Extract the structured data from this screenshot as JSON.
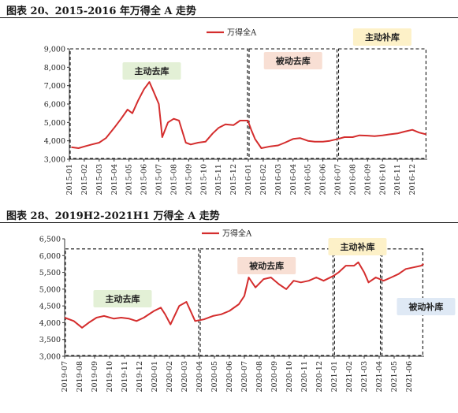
{
  "figures": [
    {
      "title": "图表 20、2015-2016 年万得全 A 走势"
    },
    {
      "title": "图表 28、2019H2-2021H1 万得全 A 走势"
    }
  ],
  "chart_data": [
    {
      "type": "line",
      "title": "",
      "xlabel": "",
      "ylabel": "",
      "x_tick_labels": [
        "2015-01",
        "2015-02",
        "2015-03",
        "2015-04",
        "2015-05",
        "2015-06",
        "2015-07",
        "2015-08",
        "2015-09",
        "2015-10",
        "2015-11",
        "2015-12",
        "2016-01",
        "2016-02",
        "2016-03",
        "2016-04",
        "2016-05",
        "2016-06",
        "2016-07",
        "2016-08",
        "2016-09",
        "2016-10",
        "2016-11",
        "2016-12"
      ],
      "x_range": [
        "2015-01",
        "2016-12"
      ],
      "ylim": [
        3000,
        9000
      ],
      "y_ticks": [
        3000,
        4000,
        5000,
        6000,
        7000,
        8000,
        9000
      ],
      "y_tick_labels": [
        "3,000",
        "4,000",
        "5,000",
        "6,000",
        "7,000",
        "8,000",
        "9,000"
      ],
      "grid": false,
      "legend": "top-center",
      "series": [
        {
          "name": "万得全A",
          "color": "#d42d2d",
          "points": [
            [
              "2015-01-05",
              3650
            ],
            [
              "2015-01-20",
              3600
            ],
            [
              "2015-02-02",
              3700
            ],
            [
              "2015-02-15",
              3800
            ],
            [
              "2015-03-01",
              3900
            ],
            [
              "2015-03-15",
              4150
            ],
            [
              "2015-04-01",
              4700
            ],
            [
              "2015-04-15",
              5200
            ],
            [
              "2015-04-28",
              5700
            ],
            [
              "2015-05-08",
              5500
            ],
            [
              "2015-05-20",
              6200
            ],
            [
              "2015-06-01",
              6800
            ],
            [
              "2015-06-12",
              7200
            ],
            [
              "2015-06-20",
              6700
            ],
            [
              "2015-07-01",
              6000
            ],
            [
              "2015-07-08",
              4200
            ],
            [
              "2015-07-20",
              5000
            ],
            [
              "2015-08-01",
              5200
            ],
            [
              "2015-08-12",
              5100
            ],
            [
              "2015-08-26",
              3900
            ],
            [
              "2015-09-05",
              3800
            ],
            [
              "2015-09-20",
              3900
            ],
            [
              "2015-10-05",
              3950
            ],
            [
              "2015-10-20",
              4400
            ],
            [
              "2015-11-01",
              4700
            ],
            [
              "2015-11-15",
              4900
            ],
            [
              "2015-12-01",
              4850
            ],
            [
              "2015-12-15",
              5100
            ],
            [
              "2015-12-31",
              5100
            ],
            [
              "2016-01-07",
              4600
            ],
            [
              "2016-01-15",
              4100
            ],
            [
              "2016-01-28",
              3600
            ],
            [
              "2016-02-15",
              3700
            ],
            [
              "2016-03-01",
              3750
            ],
            [
              "2016-03-15",
              3900
            ],
            [
              "2016-04-01",
              4100
            ],
            [
              "2016-04-15",
              4150
            ],
            [
              "2016-05-01",
              4000
            ],
            [
              "2016-05-15",
              3950
            ],
            [
              "2016-06-01",
              3950
            ],
            [
              "2016-06-15",
              4000
            ],
            [
              "2016-07-01",
              4100
            ],
            [
              "2016-07-15",
              4200
            ],
            [
              "2016-08-01",
              4200
            ],
            [
              "2016-08-15",
              4300
            ],
            [
              "2016-09-01",
              4280
            ],
            [
              "2016-09-15",
              4250
            ],
            [
              "2016-10-01",
              4300
            ],
            [
              "2016-10-15",
              4350
            ],
            [
              "2016-11-01",
              4400
            ],
            [
              "2016-11-15",
              4500
            ],
            [
              "2016-12-01",
              4600
            ],
            [
              "2016-12-15",
              4450
            ],
            [
              "2016-12-30",
              4350
            ]
          ]
        }
      ],
      "annotations": [
        {
          "label": "主动去库",
          "color": "#e3f0d6",
          "from": "2015-01-01",
          "to": "2016-01-01",
          "top": 9000
        },
        {
          "label": "被动去库",
          "color": "#f8dfd4",
          "from": "2016-01-01",
          "to": "2016-07-01",
          "top": 9000
        },
        {
          "label": "主动补库",
          "color": "#fdf1c8",
          "from": "2016-07-01",
          "to": "2016-12-31",
          "top": 9000
        }
      ]
    },
    {
      "type": "line",
      "title": "",
      "xlabel": "",
      "ylabel": "",
      "x_tick_labels": [
        "2019-07",
        "2019-08",
        "2019-09",
        "2019-10",
        "2019-11",
        "2019-12",
        "2020-01",
        "2020-02",
        "2020-03",
        "2020-04",
        "2020-05",
        "2020-06",
        "2020-07",
        "2020-08",
        "2020-09",
        "2020-10",
        "2020-11",
        "2020-12",
        "2021-01",
        "2021-02",
        "2021-03",
        "2021-04",
        "2021-05",
        "2021-06"
      ],
      "x_range": [
        "2019-07",
        "2021-06"
      ],
      "ylim": [
        3000,
        6500
      ],
      "y_ticks": [
        3000,
        3500,
        4000,
        4500,
        5000,
        5500,
        6000,
        6500
      ],
      "y_tick_labels": [
        "3,000",
        "3,500",
        "4,000",
        "4,500",
        "5,000",
        "5,500",
        "6,000",
        "6,500"
      ],
      "grid": false,
      "legend": "top-center",
      "series": [
        {
          "name": "万得全A",
          "color": "#d42d2d",
          "points": [
            [
              "2019-07-01",
              4150
            ],
            [
              "2019-07-20",
              4050
            ],
            [
              "2019-08-06",
              3850
            ],
            [
              "2019-08-20",
              4000
            ],
            [
              "2019-09-05",
              4150
            ],
            [
              "2019-09-20",
              4200
            ],
            [
              "2019-10-10",
              4120
            ],
            [
              "2019-10-25",
              4150
            ],
            [
              "2019-11-10",
              4120
            ],
            [
              "2019-11-25",
              4050
            ],
            [
              "2019-12-10",
              4150
            ],
            [
              "2019-12-31",
              4350
            ],
            [
              "2020-01-14",
              4450
            ],
            [
              "2020-01-23",
              4250
            ],
            [
              "2020-02-03",
              3950
            ],
            [
              "2020-02-20",
              4500
            ],
            [
              "2020-03-05",
              4620
            ],
            [
              "2020-03-23",
              4050
            ],
            [
              "2020-04-10",
              4100
            ],
            [
              "2020-04-28",
              4200
            ],
            [
              "2020-05-15",
              4250
            ],
            [
              "2020-06-01",
              4350
            ],
            [
              "2020-06-20",
              4550
            ],
            [
              "2020-07-01",
              4800
            ],
            [
              "2020-07-10",
              5350
            ],
            [
              "2020-07-24",
              5050
            ],
            [
              "2020-08-10",
              5300
            ],
            [
              "2020-08-25",
              5350
            ],
            [
              "2020-09-10",
              5150
            ],
            [
              "2020-09-25",
              5000
            ],
            [
              "2020-10-10",
              5250
            ],
            [
              "2020-10-25",
              5200
            ],
            [
              "2020-11-10",
              5250
            ],
            [
              "2020-11-25",
              5350
            ],
            [
              "2020-12-10",
              5250
            ],
            [
              "2020-12-31",
              5400
            ],
            [
              "2021-01-10",
              5500
            ],
            [
              "2021-01-25",
              5700
            ],
            [
              "2021-02-10",
              5700
            ],
            [
              "2021-02-18",
              5800
            ],
            [
              "2021-03-01",
              5500
            ],
            [
              "2021-03-10",
              5200
            ],
            [
              "2021-03-25",
              5350
            ],
            [
              "2021-04-10",
              5250
            ],
            [
              "2021-04-25",
              5350
            ],
            [
              "2021-05-10",
              5450
            ],
            [
              "2021-05-25",
              5600
            ],
            [
              "2021-06-10",
              5650
            ],
            [
              "2021-06-25",
              5700
            ],
            [
              "2021-06-30",
              5750
            ]
          ]
        }
      ],
      "annotations": [
        {
          "label": "主动去库",
          "color": "#e3f0d6",
          "from": "2019-07-01",
          "to": "2020-04-01",
          "top": 6200
        },
        {
          "label": "被动去库",
          "color": "#f8dfd4",
          "from": "2020-04-01",
          "to": "2020-12-31",
          "top": 6200
        },
        {
          "label": "主动补库",
          "color": "#fdf1c8",
          "from": "2020-12-31",
          "to": "2021-04-05",
          "top": 6200
        },
        {
          "label": "被动补库",
          "color": "#dfe9f5",
          "from": "2021-04-05",
          "to": "2021-06-30",
          "top": 6200
        }
      ]
    }
  ]
}
